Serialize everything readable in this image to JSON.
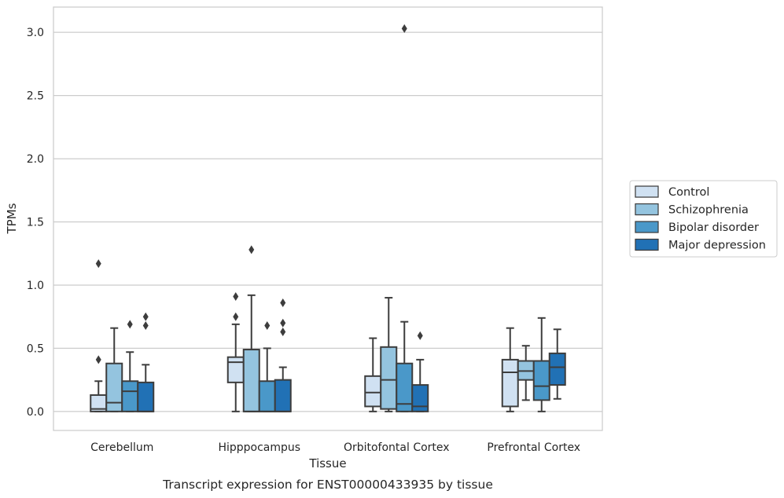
{
  "caption": "Transcript expression for ENST00000433935 by tissue",
  "chart_data": {
    "type": "box",
    "xlabel": "Tissue",
    "ylabel": "TPMs",
    "ylim": [
      -0.15,
      3.2
    ],
    "yticks": [
      0.0,
      0.5,
      1.0,
      1.5,
      2.0,
      2.5,
      3.0
    ],
    "ytick_labels": [
      "0.0",
      "0.5",
      "1.0",
      "1.5",
      "2.0",
      "2.5",
      "3.0"
    ],
    "grid": true,
    "legend_position": "right",
    "categories": [
      "Cerebellum",
      "Hipppocampus",
      "Orbitofontal Cortex",
      "Prefrontal Cortex"
    ],
    "series": [
      {
        "name": "Control",
        "color": "#d0e1f2",
        "boxes": [
          {
            "whislo": 0.0,
            "q1": 0.0,
            "med": 0.02,
            "q3": 0.13,
            "whishi": 0.24,
            "fliers": [
              0.41,
              1.17
            ]
          },
          {
            "whislo": 0.0,
            "q1": 0.23,
            "med": 0.39,
            "q3": 0.43,
            "whishi": 0.69,
            "fliers": [
              0.75,
              0.91
            ]
          },
          {
            "whislo": 0.0,
            "q1": 0.04,
            "med": 0.15,
            "q3": 0.28,
            "whishi": 0.58,
            "fliers": []
          },
          {
            "whislo": 0.0,
            "q1": 0.04,
            "med": 0.31,
            "q3": 0.41,
            "whishi": 0.66,
            "fliers": []
          }
        ]
      },
      {
        "name": "Schizophrenia",
        "color": "#94c4df",
        "boxes": [
          {
            "whislo": 0.0,
            "q1": 0.0,
            "med": 0.07,
            "q3": 0.38,
            "whishi": 0.66,
            "fliers": []
          },
          {
            "whislo": 0.0,
            "q1": 0.0,
            "med": 0.0,
            "q3": 0.49,
            "whishi": 0.92,
            "fliers": [
              1.28
            ]
          },
          {
            "whislo": 0.0,
            "q1": 0.02,
            "med": 0.25,
            "q3": 0.51,
            "whishi": 0.9,
            "fliers": []
          },
          {
            "whislo": 0.09,
            "q1": 0.25,
            "med": 0.32,
            "q3": 0.4,
            "whishi": 0.52,
            "fliers": []
          }
        ]
      },
      {
        "name": "Bipolar disorder",
        "color": "#4a98c9",
        "boxes": [
          {
            "whislo": 0.0,
            "q1": 0.0,
            "med": 0.16,
            "q3": 0.24,
            "whishi": 0.47,
            "fliers": [
              0.69
            ]
          },
          {
            "whislo": 0.0,
            "q1": 0.0,
            "med": 0.0,
            "q3": 0.24,
            "whishi": 0.5,
            "fliers": [
              0.68
            ]
          },
          {
            "whislo": 0.0,
            "q1": 0.0,
            "med": 0.06,
            "q3": 0.38,
            "whishi": 0.71,
            "fliers": [
              3.03
            ]
          },
          {
            "whislo": 0.0,
            "q1": 0.09,
            "med": 0.2,
            "q3": 0.4,
            "whishi": 0.74,
            "fliers": []
          }
        ]
      },
      {
        "name": "Major depression",
        "color": "#2171b5",
        "boxes": [
          {
            "whislo": 0.0,
            "q1": 0.0,
            "med": 0.0,
            "q3": 0.23,
            "whishi": 0.37,
            "fliers": [
              0.68,
              0.75
            ]
          },
          {
            "whislo": 0.0,
            "q1": 0.0,
            "med": 0.0,
            "q3": 0.25,
            "whishi": 0.35,
            "fliers": [
              0.63,
              0.7,
              0.86
            ]
          },
          {
            "whislo": 0.0,
            "q1": 0.0,
            "med": 0.04,
            "q3": 0.21,
            "whishi": 0.41,
            "fliers": [
              0.6
            ]
          },
          {
            "whislo": 0.1,
            "q1": 0.21,
            "med": 0.35,
            "q3": 0.46,
            "whishi": 0.65,
            "fliers": []
          }
        ]
      }
    ]
  }
}
